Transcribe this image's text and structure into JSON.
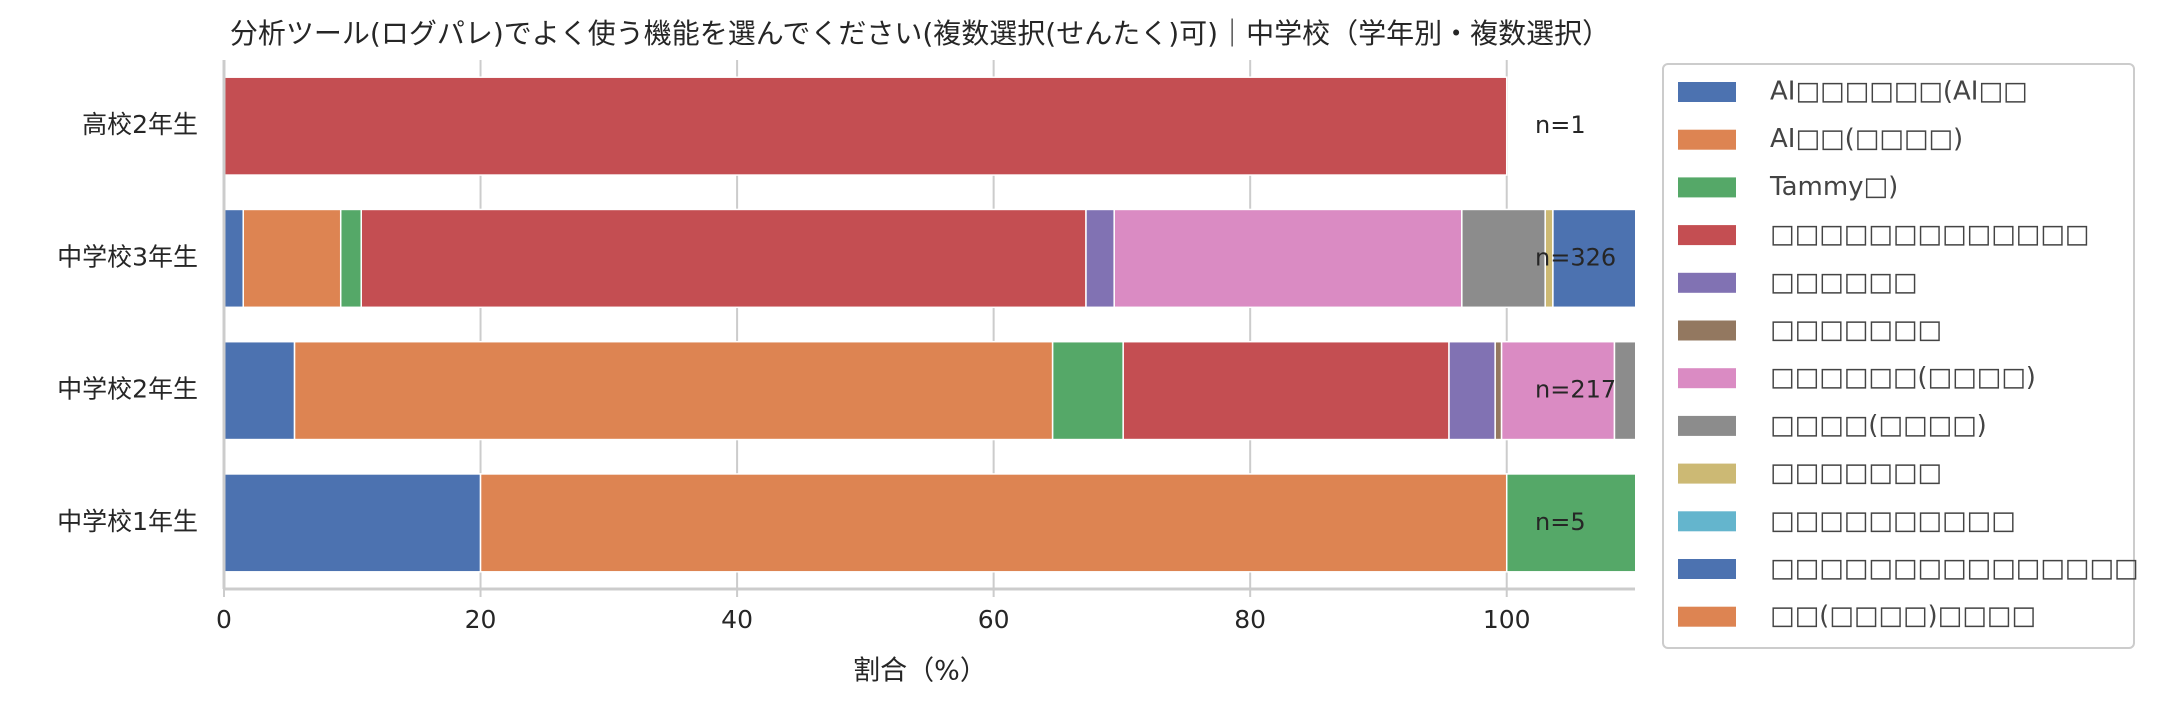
{
  "chart_data": {
    "type": "stacked_barh",
    "title": "分析ツール(ログパレ)でよく使う機能を選んでください(複数選択(せんたく)可)｜中学校（学年別・複数選択）",
    "xlabel": "割合（%）",
    "categories": [
      "高校2年生",
      "中学校3年生",
      "中学校2年生",
      "中学校1年生"
    ],
    "annotations": [
      "n=1",
      "n=326",
      "n=217",
      "n=5"
    ],
    "xlim": [
      0,
      110
    ],
    "xticks": [
      0,
      20,
      40,
      60,
      80,
      100
    ],
    "grid": true,
    "legend": "outside right",
    "series": [
      {
        "name": "AI□□□□□□(AI□□",
        "color": "#4c72b0",
        "values": [
          0,
          1.5,
          5.5,
          20
        ]
      },
      {
        "name": "AI□□(□□□□)",
        "color": "#dd8452",
        "values": [
          0,
          7.6,
          59.1,
          80
        ]
      },
      {
        "name": "Tammy□)",
        "color": "#55a868",
        "values": [
          0,
          1.6,
          5.5,
          20
        ]
      },
      {
        "name": "□□□□□□□□□□□□□",
        "color": "#c44e52",
        "values": [
          100,
          56.5,
          25.4,
          0
        ]
      },
      {
        "name": "□□□□□□",
        "color": "#8172b3",
        "values": [
          0,
          2.2,
          3.6,
          0
        ]
      },
      {
        "name": "□□□□□□□",
        "color": "#937860",
        "values": [
          0,
          0,
          0.5,
          0
        ]
      },
      {
        "name": "□□□□□□(□□□□)",
        "color": "#da8bc3",
        "values": [
          0,
          27.1,
          8.8,
          0
        ]
      },
      {
        "name": "□□□□(□□□□)",
        "color": "#8c8c8c",
        "values": [
          0,
          6.5,
          3,
          0
        ]
      },
      {
        "name": "□□□□□□□",
        "color": "#ccb974",
        "values": [
          0,
          0.6,
          0,
          0
        ]
      },
      {
        "name": "□□□□□□□□□□",
        "color": "#64b5cd",
        "values": [
          0,
          0,
          0,
          0
        ]
      },
      {
        "name": "□□□□□□□□□□□□□□□",
        "color": "#4c72b0",
        "values": [
          0,
          7,
          0,
          0
        ]
      },
      {
        "name": "□□(□□□□)□□□□",
        "color": "#dd8452",
        "values": [
          0,
          0,
          0,
          0
        ]
      }
    ]
  }
}
